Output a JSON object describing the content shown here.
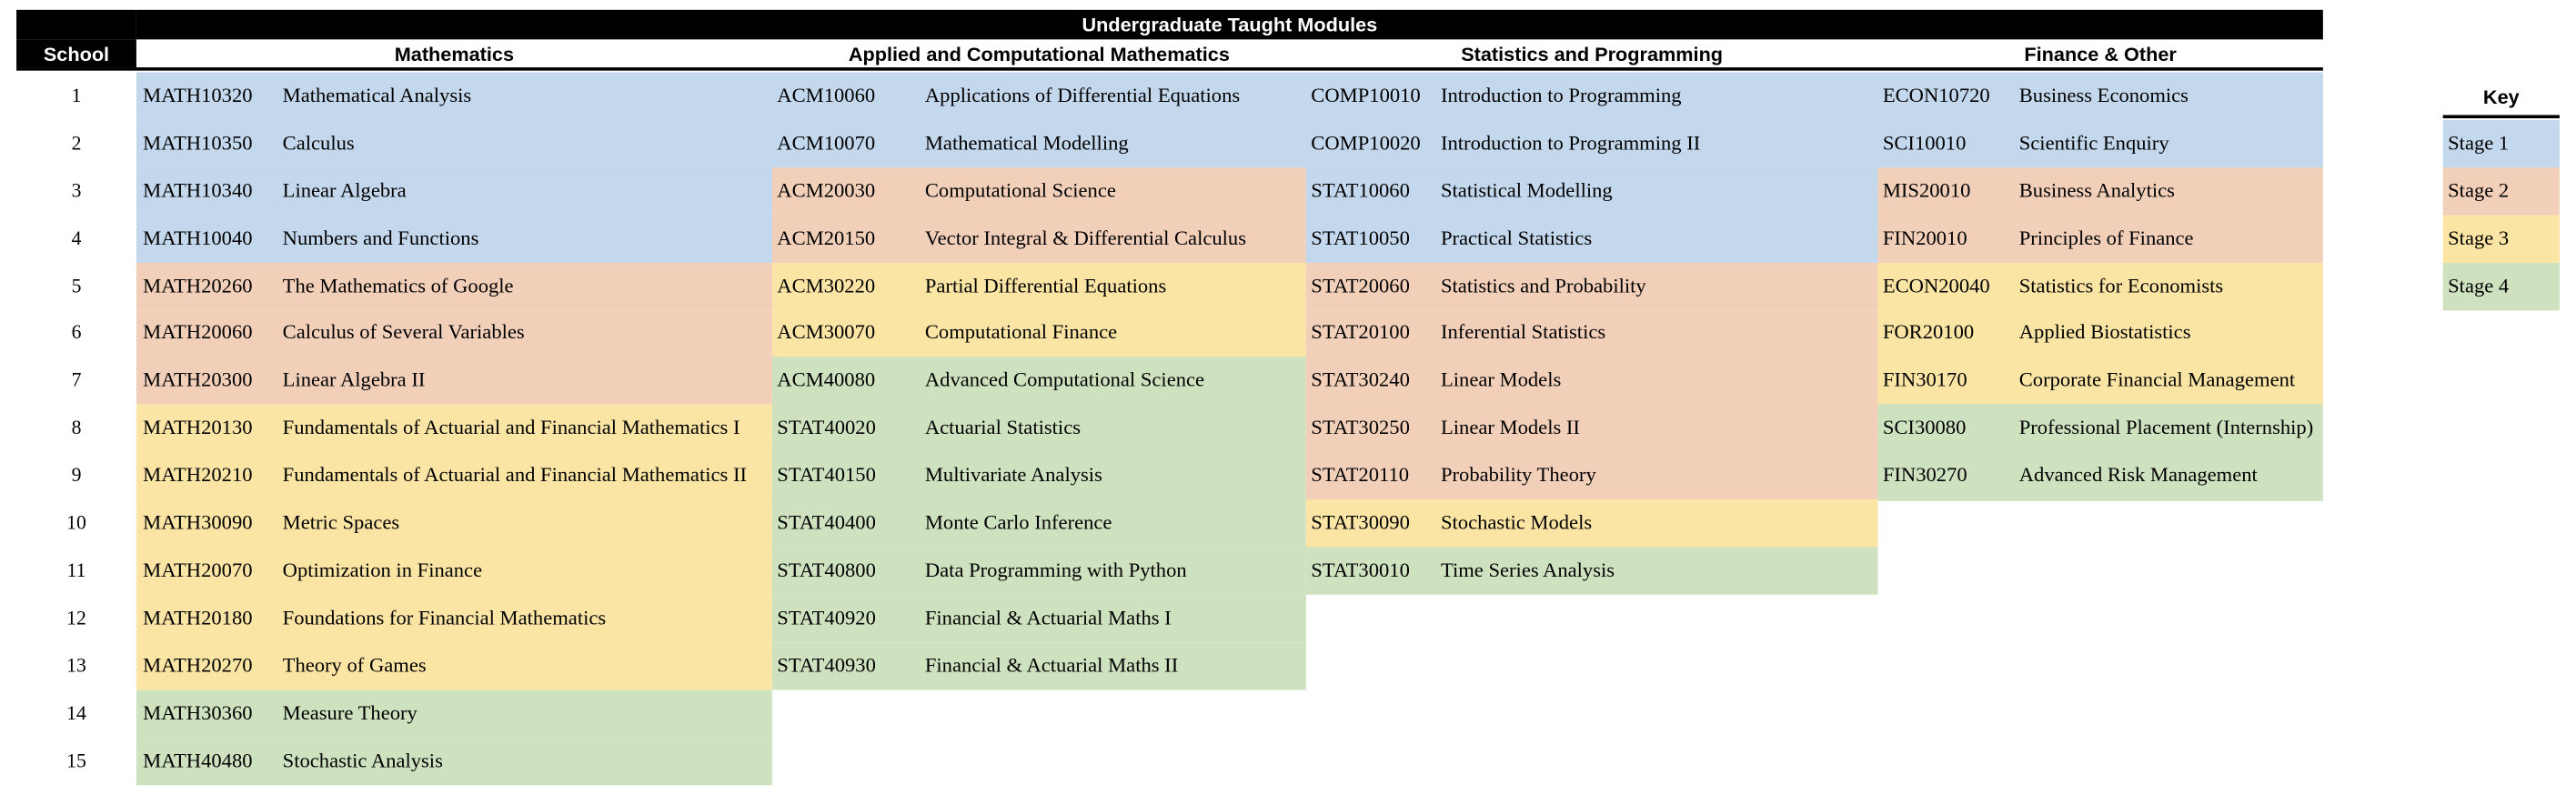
{
  "title": "Undergraduate Taught Modules",
  "school_header": "School",
  "row_numbers": [
    "1",
    "2",
    "3",
    "4",
    "5",
    "6",
    "7",
    "8",
    "9",
    "10",
    "11",
    "12",
    "13",
    "14",
    "15"
  ],
  "columns": [
    {
      "title": "Mathematics",
      "modules": [
        {
          "code": "MATH10320",
          "name": "Mathematical Analysis",
          "color": "#c3d7ed"
        },
        {
          "code": "MATH10350",
          "name": "Calculus",
          "color": "#c3d7ed"
        },
        {
          "code": "MATH10340",
          "name": "Linear Algebra",
          "color": "#c3d7ed"
        },
        {
          "code": "MATH10040",
          "name": "Numbers and Functions",
          "color": "#c3d7ed"
        },
        {
          "code": "MATH20260",
          "name": "The Mathematics of Google",
          "color": "#f2cfb9"
        },
        {
          "code": "MATH20060",
          "name": "Calculus of Several Variables",
          "color": "#f2cfb9"
        },
        {
          "code": "MATH20300",
          "name": "Linear Algebra II",
          "color": "#f2cfb9"
        },
        {
          "code": "MATH20130",
          "name": "Fundamentals of Actuarial and Financial Mathematics I",
          "color": "#fbe5a4"
        },
        {
          "code": "MATH20210",
          "name": "Fundamentals of Actuarial and Financial Mathematics II",
          "color": "#fbe5a4"
        },
        {
          "code": "MATH30090",
          "name": "Metric Spaces",
          "color": "#fbe5a4"
        },
        {
          "code": "MATH20070",
          "name": "Optimization in Finance",
          "color": "#fbe5a4"
        },
        {
          "code": "MATH20180",
          "name": "Foundations for Financial Mathematics",
          "color": "#fbe5a4"
        },
        {
          "code": "MATH20270",
          "name": "Theory of Games",
          "color": "#fbe5a4"
        },
        {
          "code": "MATH30360",
          "name": "Measure Theory",
          "color": "#cfe2bf"
        },
        {
          "code": "MATH40480",
          "name": "Stochastic Analysis",
          "color": "#cfe2bf"
        }
      ]
    },
    {
      "title": "Applied and Computational Mathematics",
      "modules": [
        {
          "code": "ACM10060",
          "name": "Applications of Differential Equations",
          "color": "#c3d7ed"
        },
        {
          "code": "ACM10070",
          "name": "Mathematical Modelling",
          "color": "#c3d7ed"
        },
        {
          "code": "ACM20030",
          "name": "Computational Science",
          "color": "#f2cfb9"
        },
        {
          "code": "ACM20150",
          "name": "Vector Integral & Differential Calculus",
          "color": "#f2cfb9"
        },
        {
          "code": "ACM30220",
          "name": "Partial Differential Equations",
          "color": "#fbe5a4"
        },
        {
          "code": "ACM30070",
          "name": "Computational Finance",
          "color": "#fbe5a4"
        },
        {
          "code": "ACM40080",
          "name": "Advanced Computational Science",
          "color": "#cfe2bf"
        },
        {
          "code": "STAT40020",
          "name": "Actuarial Statistics",
          "color": "#cfe2bf"
        },
        {
          "code": "STAT40150",
          "name": "Multivariate Analysis",
          "color": "#cfe2bf"
        },
        {
          "code": "STAT40400",
          "name": "Monte Carlo Inference",
          "color": "#cfe2bf"
        },
        {
          "code": "STAT40800",
          "name": "Data Programming with Python",
          "color": "#cfe2bf"
        },
        {
          "code": "STAT40920",
          "name": "Financial & Actuarial Maths I",
          "color": "#cfe2bf"
        },
        {
          "code": "STAT40930",
          "name": "Financial & Actuarial Maths II",
          "color": "#cfe2bf"
        }
      ]
    },
    {
      "title": "Statistics and Programming",
      "modules": [
        {
          "code": "COMP10010",
          "name": "Introduction to Programming",
          "color": "#c3d7ed"
        },
        {
          "code": "COMP10020",
          "name": "Introduction to Programming II",
          "color": "#c3d7ed"
        },
        {
          "code": "STAT10060",
          "name": "Statistical Modelling",
          "color": "#c3d7ed"
        },
        {
          "code": "STAT10050",
          "name": "Practical Statistics",
          "color": "#c3d7ed"
        },
        {
          "code": "STAT20060",
          "name": "Statistics and Probability",
          "color": "#f2cfb9"
        },
        {
          "code": "STAT20100",
          "name": "Inferential Statistics",
          "color": "#f2cfb9"
        },
        {
          "code": "STAT30240",
          "name": "Linear Models",
          "color": "#f2cfb9"
        },
        {
          "code": "STAT30250",
          "name": "Linear Models II",
          "color": "#f2cfb9"
        },
        {
          "code": "STAT20110",
          "name": "Probability Theory",
          "color": "#f2cfb9"
        },
        {
          "code": "STAT30090",
          "name": "Stochastic Models",
          "color": "#fbe5a4"
        },
        {
          "code": "STAT30010",
          "name": "Time Series Analysis",
          "color": "#cfe2bf"
        }
      ]
    },
    {
      "title": "Finance & Other",
      "modules": [
        {
          "code": "ECON10720",
          "name": "Business Economics",
          "color": "#c3d7ed"
        },
        {
          "code": "SCI10010",
          "name": "Scientific Enquiry",
          "color": "#c3d7ed"
        },
        {
          "code": "MIS20010",
          "name": "Business Analytics",
          "color": "#f2cfb9"
        },
        {
          "code": "FIN20010",
          "name": "Principles of Finance",
          "color": "#f2cfb9"
        },
        {
          "code": "ECON20040",
          "name": "Statistics for Economists",
          "color": "#fbe5a4"
        },
        {
          "code": "FOR20100",
          "name": "Applied Biostatistics",
          "color": "#fbe5a4"
        },
        {
          "code": "FIN30170",
          "name": "Corporate Financial Management",
          "color": "#fbe5a4"
        },
        {
          "code": "SCI30080",
          "name": "Professional Placement (Internship)",
          "color": "#cfe2bf"
        },
        {
          "code": "FIN30270",
          "name": "Advanced Risk Management",
          "color": "#cfe2bf"
        }
      ]
    }
  ],
  "key": {
    "title": "Key",
    "entries": [
      {
        "label": "Stage 1",
        "color": "#c3d7ed"
      },
      {
        "label": "Stage 2",
        "color": "#f2cfb9"
      },
      {
        "label": "Stage 3",
        "color": "#fbe5a4"
      },
      {
        "label": "Stage 4",
        "color": "#cfe2bf"
      }
    ]
  }
}
